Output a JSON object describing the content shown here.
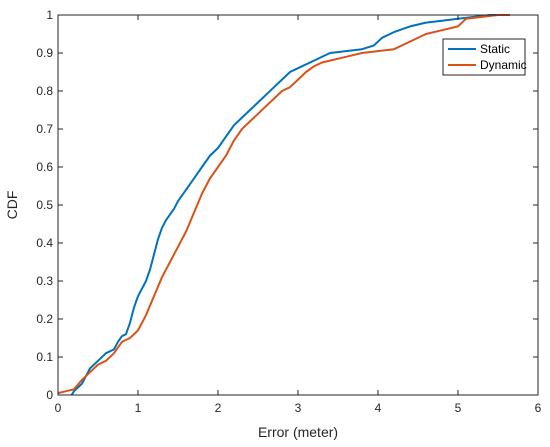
{
  "chart_data": {
    "type": "line",
    "title": "",
    "xlabel": "Error (meter)",
    "ylabel": "CDF",
    "xlim": [
      0,
      6
    ],
    "ylim": [
      0,
      1
    ],
    "xticks": [
      "0",
      "1",
      "2",
      "3",
      "4",
      "5",
      "6"
    ],
    "yticks": [
      "0",
      "0.1",
      "0.2",
      "0.3",
      "0.4",
      "0.5",
      "0.6",
      "0.7",
      "0.8",
      "0.9",
      "1"
    ],
    "grid": false,
    "legend_position": "top-right",
    "series": [
      {
        "name": "Static",
        "color": "#0072BD",
        "points": [
          [
            0.17,
            0.0
          ],
          [
            0.2,
            0.01
          ],
          [
            0.25,
            0.02
          ],
          [
            0.3,
            0.03
          ],
          [
            0.35,
            0.05
          ],
          [
            0.4,
            0.07
          ],
          [
            0.5,
            0.09
          ],
          [
            0.6,
            0.11
          ],
          [
            0.7,
            0.12
          ],
          [
            0.75,
            0.14
          ],
          [
            0.8,
            0.155
          ],
          [
            0.85,
            0.16
          ],
          [
            0.9,
            0.19
          ],
          [
            0.95,
            0.23
          ],
          [
            1.0,
            0.26
          ],
          [
            1.05,
            0.28
          ],
          [
            1.1,
            0.3
          ],
          [
            1.15,
            0.33
          ],
          [
            1.2,
            0.37
          ],
          [
            1.25,
            0.41
          ],
          [
            1.3,
            0.44
          ],
          [
            1.35,
            0.46
          ],
          [
            1.45,
            0.49
          ],
          [
            1.5,
            0.51
          ],
          [
            1.6,
            0.54
          ],
          [
            1.7,
            0.57
          ],
          [
            1.8,
            0.6
          ],
          [
            1.9,
            0.63
          ],
          [
            2.0,
            0.65
          ],
          [
            2.1,
            0.68
          ],
          [
            2.2,
            0.71
          ],
          [
            2.3,
            0.73
          ],
          [
            2.4,
            0.75
          ],
          [
            2.5,
            0.77
          ],
          [
            2.6,
            0.79
          ],
          [
            2.7,
            0.81
          ],
          [
            2.8,
            0.83
          ],
          [
            2.9,
            0.85
          ],
          [
            3.0,
            0.86
          ],
          [
            3.2,
            0.88
          ],
          [
            3.4,
            0.9
          ],
          [
            3.6,
            0.905
          ],
          [
            3.8,
            0.91
          ],
          [
            3.95,
            0.92
          ],
          [
            4.05,
            0.94
          ],
          [
            4.2,
            0.955
          ],
          [
            4.4,
            0.97
          ],
          [
            4.6,
            0.98
          ],
          [
            4.8,
            0.985
          ],
          [
            5.0,
            0.99
          ],
          [
            5.2,
            0.995
          ],
          [
            5.4,
            1.0
          ],
          [
            5.65,
            1.0
          ]
        ]
      },
      {
        "name": "Dynamic",
        "color": "#D95319",
        "points": [
          [
            0.0,
            0.005
          ],
          [
            0.1,
            0.01
          ],
          [
            0.2,
            0.015
          ],
          [
            0.3,
            0.04
          ],
          [
            0.4,
            0.06
          ],
          [
            0.5,
            0.08
          ],
          [
            0.6,
            0.09
          ],
          [
            0.7,
            0.11
          ],
          [
            0.8,
            0.14
          ],
          [
            0.9,
            0.15
          ],
          [
            1.0,
            0.17
          ],
          [
            1.1,
            0.21
          ],
          [
            1.2,
            0.26
          ],
          [
            1.3,
            0.31
          ],
          [
            1.4,
            0.35
          ],
          [
            1.5,
            0.39
          ],
          [
            1.6,
            0.43
          ],
          [
            1.7,
            0.48
          ],
          [
            1.8,
            0.53
          ],
          [
            1.9,
            0.57
          ],
          [
            2.0,
            0.6
          ],
          [
            2.1,
            0.63
          ],
          [
            2.2,
            0.67
          ],
          [
            2.3,
            0.7
          ],
          [
            2.4,
            0.72
          ],
          [
            2.5,
            0.74
          ],
          [
            2.6,
            0.76
          ],
          [
            2.7,
            0.78
          ],
          [
            2.8,
            0.8
          ],
          [
            2.9,
            0.81
          ],
          [
            3.0,
            0.83
          ],
          [
            3.1,
            0.85
          ],
          [
            3.2,
            0.865
          ],
          [
            3.3,
            0.875
          ],
          [
            3.4,
            0.88
          ],
          [
            3.6,
            0.89
          ],
          [
            3.8,
            0.9
          ],
          [
            4.0,
            0.905
          ],
          [
            4.2,
            0.91
          ],
          [
            4.3,
            0.92
          ],
          [
            4.4,
            0.93
          ],
          [
            4.6,
            0.95
          ],
          [
            4.8,
            0.96
          ],
          [
            5.0,
            0.97
          ],
          [
            5.1,
            0.99
          ],
          [
            5.3,
            0.995
          ],
          [
            5.5,
            1.0
          ],
          [
            5.65,
            1.0
          ]
        ]
      }
    ]
  }
}
